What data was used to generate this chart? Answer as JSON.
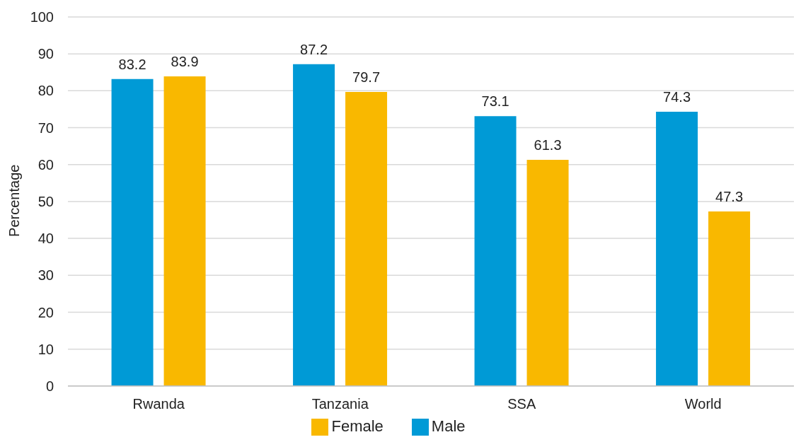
{
  "chart_data": {
    "type": "bar",
    "ylabel": "Percentage",
    "categories": [
      "Rwanda",
      "Tanzania",
      "SSA",
      "World"
    ],
    "series": [
      {
        "name": "Male",
        "color": "#009ad6",
        "values": [
          83.2,
          87.2,
          73.1,
          74.3
        ]
      },
      {
        "name": "Female",
        "color": "#f9b800",
        "values": [
          83.9,
          79.7,
          61.3,
          47.3
        ]
      }
    ],
    "ylim": [
      0,
      100
    ],
    "yticks": [
      0,
      10,
      20,
      30,
      40,
      50,
      60,
      70,
      80,
      90,
      100
    ],
    "grid": "y",
    "legend": "bottom",
    "data_labels": true
  }
}
